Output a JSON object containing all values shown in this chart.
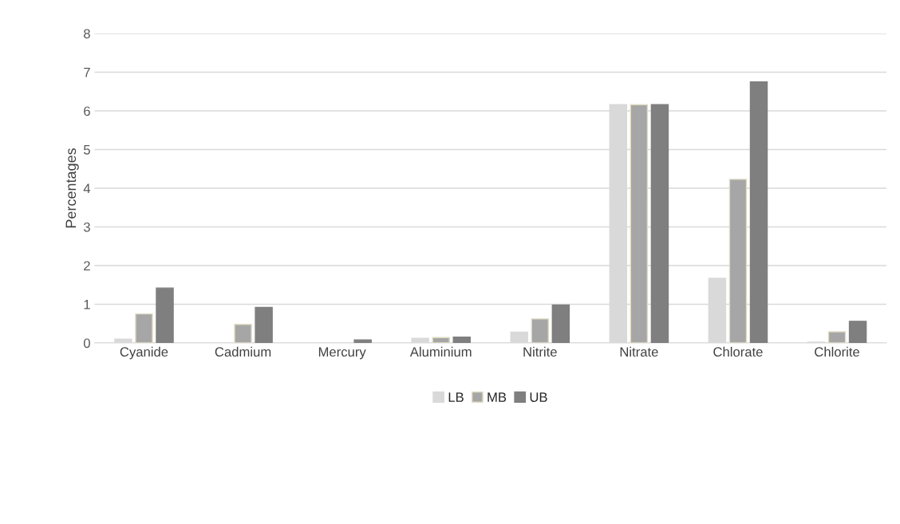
{
  "chart_data": {
    "type": "bar",
    "ylabel": "Percentages",
    "categories": [
      "Cyanide",
      "Cadmium",
      "Mercury",
      "Aluminium",
      "Nitrite",
      "Nitrate",
      "Chlorate",
      "Chlorite"
    ],
    "series": [
      {
        "name": "LB",
        "color": "#d9d9d9",
        "values": [
          0.1,
          0,
          0,
          0.12,
          0.28,
          6.16,
          1.67,
          0.02
        ]
      },
      {
        "name": "MB",
        "color": "#a6a6a6",
        "values": [
          0.75,
          0.48,
          0,
          0.14,
          0.62,
          6.16,
          4.23,
          0.29
        ]
      },
      {
        "name": "UB",
        "color": "#7f7f7f",
        "values": [
          1.42,
          0.92,
          0.08,
          0.15,
          0.98,
          6.16,
          6.75,
          0.56
        ]
      }
    ],
    "ylim": [
      0,
      8
    ],
    "yticks": [
      0,
      1,
      2,
      3,
      4,
      5,
      6,
      7,
      8
    ],
    "grid": "y",
    "legend": "bottom"
  }
}
